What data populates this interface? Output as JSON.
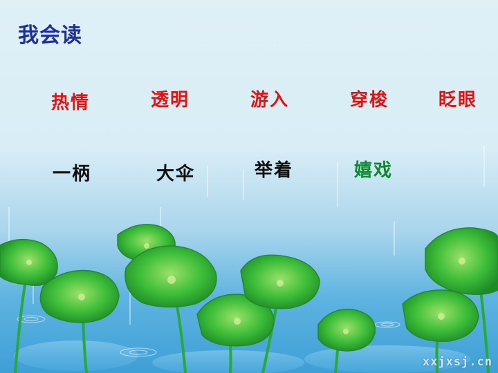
{
  "slide": {
    "title": "我会读",
    "row1": [
      {
        "text": "热情",
        "color": "#e31212"
      },
      {
        "text": "透明",
        "color": "#e31212"
      },
      {
        "text": "游入",
        "color": "#e31212"
      },
      {
        "text": "穿梭",
        "color": "#e31212"
      },
      {
        "text": "眨眼",
        "color": "#e31212"
      }
    ],
    "row2": [
      {
        "text": "一柄",
        "color": "#111111"
      },
      {
        "text": "大伞",
        "color": "#111111"
      },
      {
        "text": "举着",
        "color": "#111111"
      },
      {
        "text": "嬉戏",
        "color": "#0c8a2d"
      }
    ],
    "watermark": "xxjxsj.cn"
  },
  "colors": {
    "title": "#1f2f9a",
    "lotus_leaf": "#3fbf3a",
    "water": "#3e9fd6"
  }
}
